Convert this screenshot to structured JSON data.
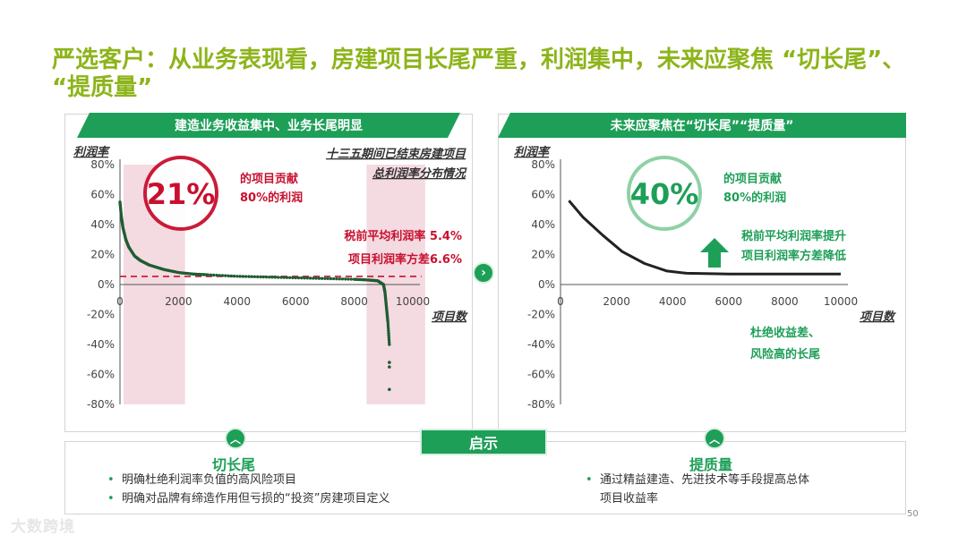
{
  "title": "严选客户：从业务表现看，房建项目长尾严重，利润集中，未来应聚焦 “切长尾”、 “提质量”",
  "left_panel": {
    "banner": "建造业务收益集中、业务长尾明显",
    "chart_title_line1": "十三五期间已结束房建项目",
    "chart_title_line2": "总利润率分布情况",
    "big_percent": "21%",
    "contrib_line1": "的项目贡献",
    "contrib_line2": "80%的利润",
    "stat_line1": "税前平均利润率 5.4%",
    "stat_line2": "项目利润率方差6.6%"
  },
  "right_panel": {
    "banner": "未来应聚焦在“切长尾”“提质量”",
    "big_percent": "40%",
    "contrib_line1": "的项目贡献",
    "contrib_line2": "80%的利润",
    "stat_line1": "税前平均利润率提升",
    "stat_line2": "项目利润率方差降低",
    "note_line1": "杜绝收益差、",
    "note_line2": "风险高的长尾"
  },
  "bottom": {
    "banner": "启示",
    "left_title": "切长尾",
    "left_bullets": [
      "明确杜绝利润率负值的高风险项目",
      "明确对品牌有缔造作用但亏损的“投资”房建项目定义"
    ],
    "right_title": "提质量",
    "right_bullets": [
      "通过精益建造、先进技术等手段提高总体",
      "项目收益率"
    ]
  },
  "page_number": "50",
  "watermark": "大数跨境",
  "colors": {
    "accent_green": "#1E9F58",
    "title_green": "#8DB41A",
    "highlight_red": "#C8102E",
    "shade_pink": "#F2D4DC",
    "curve_green": "#1F5C33"
  },
  "chart_data": [
    {
      "type": "scatter",
      "title": "十三五期间已结束房建项目总利润率分布情况",
      "ylabel": "利润率",
      "xlabel": "项目数",
      "xlim": [
        0,
        10000
      ],
      "ylim": [
        -0.8,
        0.8
      ],
      "x_ticks": [
        0,
        2000,
        4000,
        6000,
        8000,
        10000
      ],
      "y_ticks": [
        "80%",
        "60%",
        "40%",
        "20%",
        "0%",
        "-20%",
        "-40%",
        "-60%",
        "-80%"
      ],
      "reference_line": 0.054,
      "shaded_x_ranges": [
        [
          0,
          2100
        ],
        [
          8300,
          10300
        ]
      ],
      "series": [
        {
          "x": [
            0,
            50,
            100,
            200,
            300,
            500,
            700,
            1000,
            1500,
            2000,
            2500,
            3000,
            4000,
            5000,
            6000,
            7000,
            8000,
            8500,
            8800,
            9000,
            9050,
            9100,
            9150,
            9200
          ],
          "y": [
            0.55,
            0.45,
            0.38,
            0.3,
            0.25,
            0.19,
            0.16,
            0.13,
            0.1,
            0.08,
            0.07,
            0.065,
            0.055,
            0.05,
            0.045,
            0.04,
            0.035,
            0.03,
            0.025,
            0.0,
            -0.05,
            -0.15,
            -0.25,
            -0.4
          ]
        }
      ],
      "outliers": [
        {
          "x": 9200,
          "y": -0.52
        },
        {
          "x": 9200,
          "y": -0.55
        },
        {
          "x": 9200,
          "y": -0.7
        }
      ]
    },
    {
      "type": "line",
      "ylabel": "利润率",
      "xlabel": "项目数",
      "xlim": [
        0,
        10000
      ],
      "ylim": [
        -0.8,
        0.8
      ],
      "x_ticks": [
        0,
        2000,
        4000,
        6000,
        8000,
        10000
      ],
      "y_ticks": [
        "80%",
        "60%",
        "40%",
        "20%",
        "0%",
        "-20%",
        "-40%",
        "-60%",
        "-80%"
      ],
      "series": [
        {
          "x": [
            300,
            800,
            1500,
            2200,
            3000,
            3800,
            4500,
            6000,
            8000,
            10000
          ],
          "y": [
            0.56,
            0.45,
            0.33,
            0.22,
            0.14,
            0.09,
            0.075,
            0.07,
            0.07,
            0.07
          ]
        }
      ]
    }
  ]
}
